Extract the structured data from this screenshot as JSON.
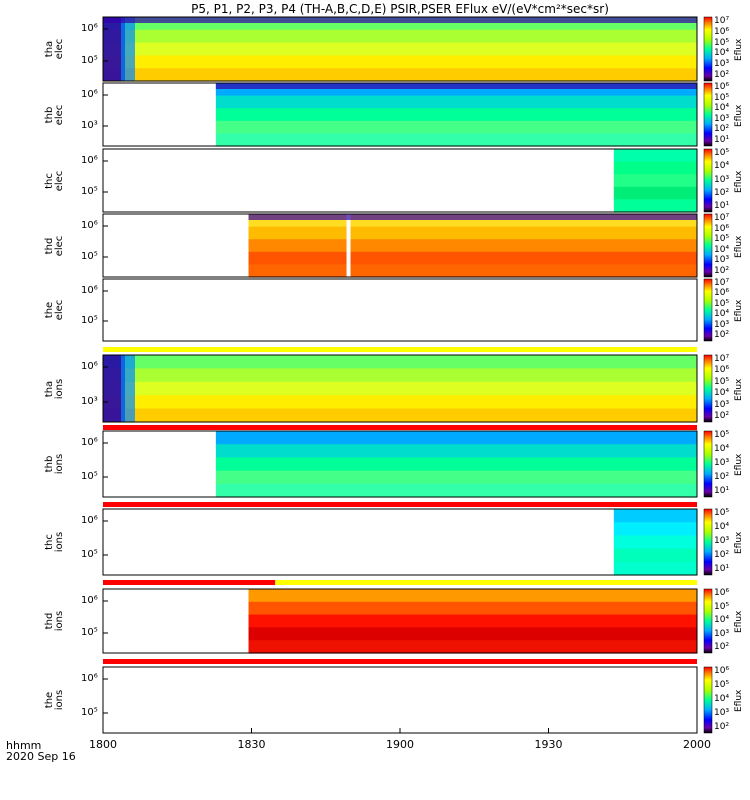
{
  "chart_data": {
    "type": "heatmap",
    "title": "P5, P1, P2, P3, P4 (TH-A,B,C,D,E) PSIR,PSER EFlux eV/(eV*cm²*sec*sr)",
    "x_tick_labels": [
      "1800",
      "1830",
      "1900",
      "1930",
      "2000"
    ],
    "x_tick_hours": [
      18.0,
      18.5,
      19.0,
      19.5,
      20.0
    ],
    "footer_line1": "hhmm",
    "footer_line2": "2020 Sep 16",
    "colorbar_label": "Eflux",
    "panels": [
      {
        "probe": "tha",
        "species": "elec",
        "ylab1": "tha",
        "ylab2": "elec",
        "yticks": [
          "10⁶",
          "10⁵"
        ],
        "cbar_ticks": [
          "10⁷",
          "10⁶",
          "10⁵",
          "10⁴",
          "10³",
          "10²"
        ],
        "data_start_hour": 18.0,
        "dominant": "green-yellow",
        "bar": null
      },
      {
        "probe": "thb",
        "species": "elec",
        "ylab1": "thb",
        "ylab2": "elec",
        "yticks": [
          "10⁶",
          "10³"
        ],
        "cbar_ticks": [
          "10⁶",
          "10⁵",
          "10⁴",
          "10³",
          "10²",
          "10¹"
        ],
        "data_start_hour": 18.38,
        "dominant": "cyan-green",
        "bar": null
      },
      {
        "probe": "thc",
        "species": "elec",
        "ylab1": "thc",
        "ylab2": "elec",
        "yticks": [
          "10⁶",
          "10⁵"
        ],
        "cbar_ticks": [
          "10⁵",
          "10⁴",
          "10³",
          "10²",
          "10¹"
        ],
        "data_start_hour": 19.72,
        "dominant": "green",
        "bar": null
      },
      {
        "probe": "thd",
        "species": "elec",
        "ylab1": "thd",
        "ylab2": "elec",
        "yticks": [
          "10⁶",
          "10⁵"
        ],
        "cbar_ticks": [
          "10⁷",
          "10⁶",
          "10⁵",
          "10⁴",
          "10³",
          "10²"
        ],
        "data_start_hour": 18.49,
        "dominant": "orange-red",
        "bar": null
      },
      {
        "probe": "the",
        "species": "elec",
        "ylab1": "the",
        "ylab2": "elec",
        "yticks": [
          "10⁶",
          "10⁵"
        ],
        "cbar_ticks": [
          "10⁷",
          "10⁶",
          "10⁵",
          "10⁴",
          "10³",
          "10²"
        ],
        "data_start_hour": null,
        "dominant": "none",
        "bar": "yellow"
      },
      {
        "probe": "tha",
        "species": "ions",
        "ylab1": "tha",
        "ylab2": "ions",
        "yticks": [
          "10⁶",
          "10³"
        ],
        "cbar_ticks": [
          "10⁷",
          "10⁶",
          "10⁵",
          "10⁴",
          "10³",
          "10²"
        ],
        "data_start_hour": 18.0,
        "dominant": "green-yellow",
        "bar": "red"
      },
      {
        "probe": "thb",
        "species": "ions",
        "ylab1": "thb",
        "ylab2": "ions",
        "yticks": [
          "10⁶",
          "10⁵"
        ],
        "cbar_ticks": [
          "10⁵",
          "10⁴",
          "10³",
          "10²",
          "10¹"
        ],
        "data_start_hour": 18.38,
        "dominant": "cyan-green",
        "bar": "red"
      },
      {
        "probe": "thc",
        "species": "ions",
        "ylab1": "thc",
        "ylab2": "ions",
        "yticks": [
          "10⁶",
          "10⁵"
        ],
        "cbar_ticks": [
          "10⁵",
          "10⁴",
          "10³",
          "10²",
          "10¹"
        ],
        "data_start_hour": 19.72,
        "dominant": "cyan",
        "bar": "red-yellow"
      },
      {
        "probe": "thd",
        "species": "ions",
        "ylab1": "thd",
        "ylab2": "ions",
        "yticks": [
          "10⁶",
          "10⁵"
        ],
        "cbar_ticks": [
          "10⁶",
          "10⁵",
          "10⁴",
          "10³",
          "10²"
        ],
        "data_start_hour": 18.49,
        "dominant": "red",
        "bar": "red"
      },
      {
        "probe": "the",
        "species": "ions",
        "ylab1": "the",
        "ylab2": "ions",
        "yticks": [
          "10⁶",
          "10⁵"
        ],
        "cbar_ticks": [
          "10⁶",
          "10⁵",
          "10⁴",
          "10³",
          "10²"
        ],
        "data_start_hour": null,
        "dominant": "none",
        "bar": null
      }
    ]
  }
}
